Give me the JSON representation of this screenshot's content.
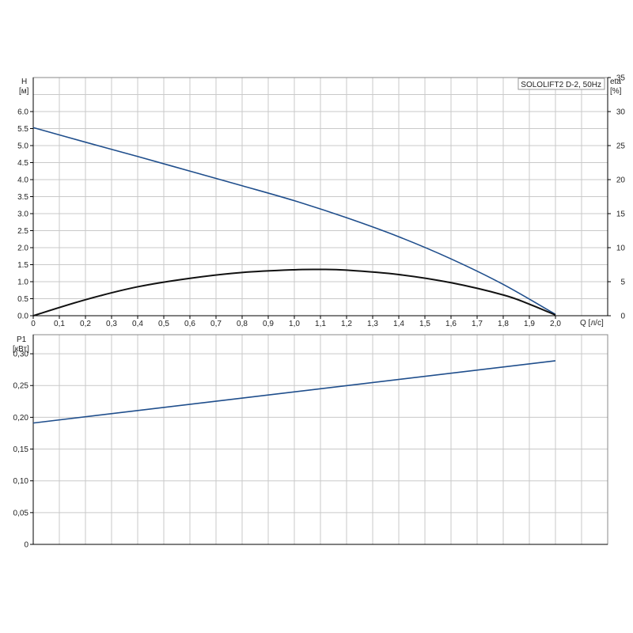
{
  "chart_data": [
    {
      "type": "line",
      "title": "SOLOLIFT2 D-2, 50Hz",
      "x_axis": {
        "label": "Q [л/с]",
        "range": [
          0,
          2.2
        ],
        "ticks": [
          "0",
          "0,1",
          "0,2",
          "0,3",
          "0,4",
          "0,5",
          "0,6",
          "0,7",
          "0,8",
          "0,9",
          "1,0",
          "1,1",
          "1,2",
          "1,3",
          "1,4",
          "1,5",
          "1,6",
          "1,7",
          "1,8",
          "1,9",
          "2,0"
        ]
      },
      "y_left": {
        "label_top": "H",
        "label_unit": "[м]",
        "range": [
          0,
          7
        ],
        "ticks": [
          "0.0",
          "0.5",
          "1.0",
          "1.5",
          "2.0",
          "2.5",
          "3.0",
          "3.5",
          "4.0",
          "4.5",
          "5.0",
          "5.5",
          "6.0"
        ]
      },
      "y_right": {
        "label_top": "eta",
        "label_unit": "[%]",
        "range": [
          0,
          35
        ],
        "ticks": [
          "0",
          "5",
          "10",
          "15",
          "20",
          "25",
          "30",
          "35"
        ]
      },
      "grid": true,
      "series": [
        {
          "axis": "left",
          "color": "#1f4e8c",
          "x": [
            0,
            0.2,
            0.4,
            0.6,
            0.8,
            1.0,
            1.2,
            1.4,
            1.6,
            1.8,
            2.0
          ],
          "y": [
            5.53,
            5.1,
            4.68,
            4.25,
            3.82,
            3.38,
            2.88,
            2.32,
            1.67,
            0.92,
            0.04
          ]
        },
        {
          "axis": "left",
          "color": "#111111",
          "x": [
            0,
            0.2,
            0.4,
            0.6,
            0.8,
            1.0,
            1.1,
            1.2,
            1.4,
            1.6,
            1.8,
            1.9,
            2.0
          ],
          "y": [
            0.0,
            0.47,
            0.85,
            1.1,
            1.27,
            1.35,
            1.36,
            1.34,
            1.21,
            0.97,
            0.61,
            0.34,
            0.02
          ]
        }
      ]
    },
    {
      "type": "line",
      "x_axis": {
        "range": [
          0,
          2.2
        ]
      },
      "y_left": {
        "label_top": "P1",
        "label_unit": "[кВт]",
        "range": [
          0,
          0.33
        ],
        "ticks": [
          "0",
          "0,05",
          "0,10",
          "0,15",
          "0,20",
          "0,25",
          "0,30"
        ]
      },
      "grid": true,
      "series": [
        {
          "axis": "left",
          "color": "#1f4e8c",
          "x": [
            0,
            2.0
          ],
          "y": [
            0.191,
            0.289
          ]
        }
      ]
    }
  ]
}
